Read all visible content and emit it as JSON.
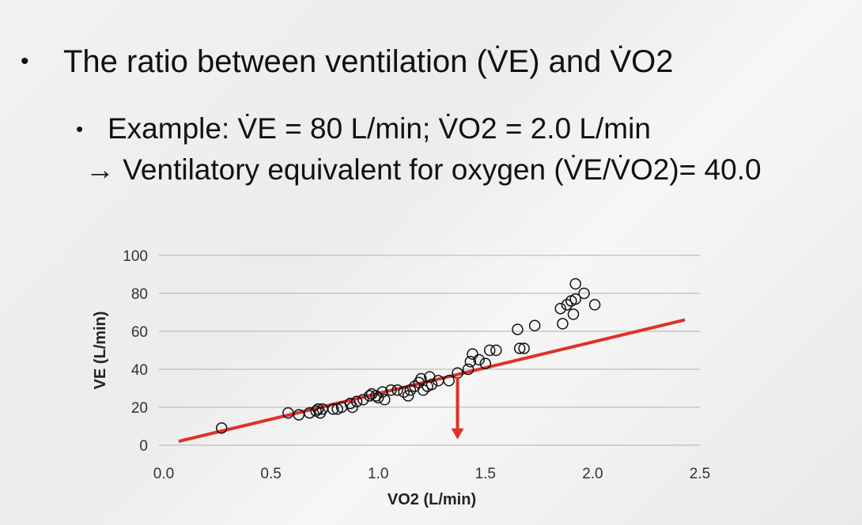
{
  "slide": {
    "bullet1_text": "The ratio between ventilation (V̇E) and V̇O2",
    "bullet2_text": "Example: V̇E = 80 L/min; V̇O2 = 2.0 L/min",
    "line3_text": "→ Ventilatory equivalent for oxygen (V̇E/V̇O2)= 40.0"
  },
  "colors": {
    "trend_line": "#e0302a",
    "points": "#111111",
    "grid": "#bdbdbd"
  },
  "chart_data": {
    "type": "scatter",
    "xlabel": "VO2 (L/min)",
    "ylabel": "VE (L/min)",
    "xlim": [
      0,
      2.5
    ],
    "ylim": [
      0,
      100
    ],
    "xticks": [
      "0.0",
      "0.5",
      "1.0",
      "1.5",
      "2.0",
      "2.5"
    ],
    "yticks": [
      "0",
      "20",
      "40",
      "60",
      "80",
      "100"
    ],
    "grid": "horizontal",
    "points": [
      [
        0.27,
        9
      ],
      [
        0.58,
        17
      ],
      [
        0.63,
        16
      ],
      [
        0.68,
        17
      ],
      [
        0.71,
        18
      ],
      [
        0.72,
        19
      ],
      [
        0.73,
        17
      ],
      [
        0.74,
        19
      ],
      [
        0.79,
        19
      ],
      [
        0.81,
        19
      ],
      [
        0.83,
        20
      ],
      [
        0.87,
        22
      ],
      [
        0.88,
        20
      ],
      [
        0.9,
        23
      ],
      [
        0.93,
        24
      ],
      [
        0.96,
        26
      ],
      [
        0.97,
        27
      ],
      [
        0.99,
        26
      ],
      [
        1.0,
        25
      ],
      [
        1.02,
        28
      ],
      [
        1.03,
        24
      ],
      [
        1.06,
        29
      ],
      [
        1.09,
        29
      ],
      [
        1.12,
        28
      ],
      [
        1.14,
        26
      ],
      [
        1.15,
        29
      ],
      [
        1.17,
        31
      ],
      [
        1.19,
        33
      ],
      [
        1.2,
        35
      ],
      [
        1.21,
        29
      ],
      [
        1.23,
        31
      ],
      [
        1.24,
        36
      ],
      [
        1.25,
        32
      ],
      [
        1.28,
        34
      ],
      [
        1.33,
        34
      ],
      [
        1.37,
        38
      ],
      [
        1.42,
        40
      ],
      [
        1.43,
        44
      ],
      [
        1.44,
        48
      ],
      [
        1.47,
        45
      ],
      [
        1.5,
        43
      ],
      [
        1.52,
        50
      ],
      [
        1.55,
        50
      ],
      [
        1.65,
        61
      ],
      [
        1.66,
        51
      ],
      [
        1.68,
        51
      ],
      [
        1.73,
        63
      ],
      [
        1.85,
        72
      ],
      [
        1.86,
        64
      ],
      [
        1.88,
        74
      ],
      [
        1.9,
        76
      ],
      [
        1.91,
        69
      ],
      [
        1.92,
        77
      ],
      [
        1.92,
        85
      ],
      [
        1.96,
        80
      ],
      [
        2.01,
        74
      ]
    ],
    "trend_line": {
      "from": [
        0.07,
        2
      ],
      "to": [
        2.43,
        66
      ]
    },
    "annotation_arrow": {
      "x": 1.37,
      "from_y": 36,
      "to_y": 3
    }
  }
}
